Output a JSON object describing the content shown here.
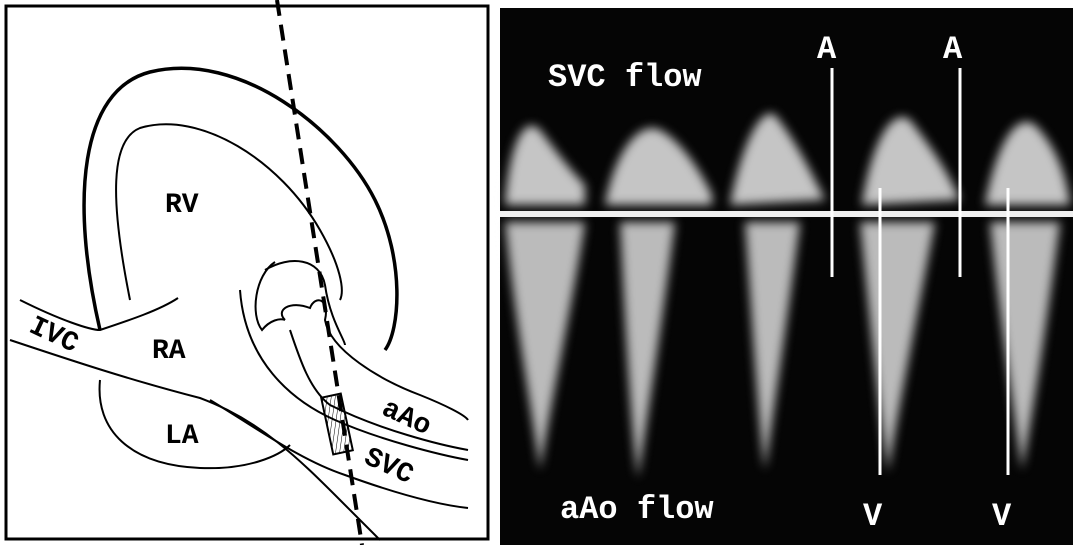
{
  "diagram": {
    "labels": {
      "rv": "RV",
      "ivc": "IVC",
      "ra": "RA",
      "la": "LA",
      "aao": "aAo",
      "svc": "SVC"
    }
  },
  "doppler": {
    "upper_label": "SVC flow",
    "lower_label": "aAo flow",
    "a_markers": [
      "A",
      "A"
    ],
    "v_markers": [
      "V",
      "V"
    ]
  }
}
